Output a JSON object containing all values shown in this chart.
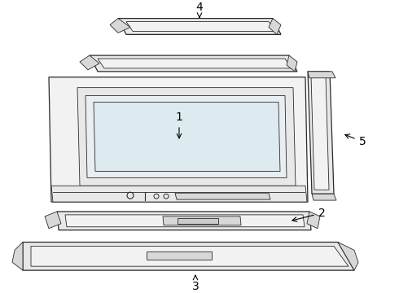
{
  "background_color": "#ffffff",
  "line_color": "#2a2a2a",
  "fill_light": "#f2f2f2",
  "fill_mid": "#e8e8e8",
  "fill_dark": "#d8d8d8",
  "label_color": "#000000",
  "fig_width": 4.9,
  "fig_height": 3.6,
  "dpi": 100,
  "label_fontsize": 10
}
